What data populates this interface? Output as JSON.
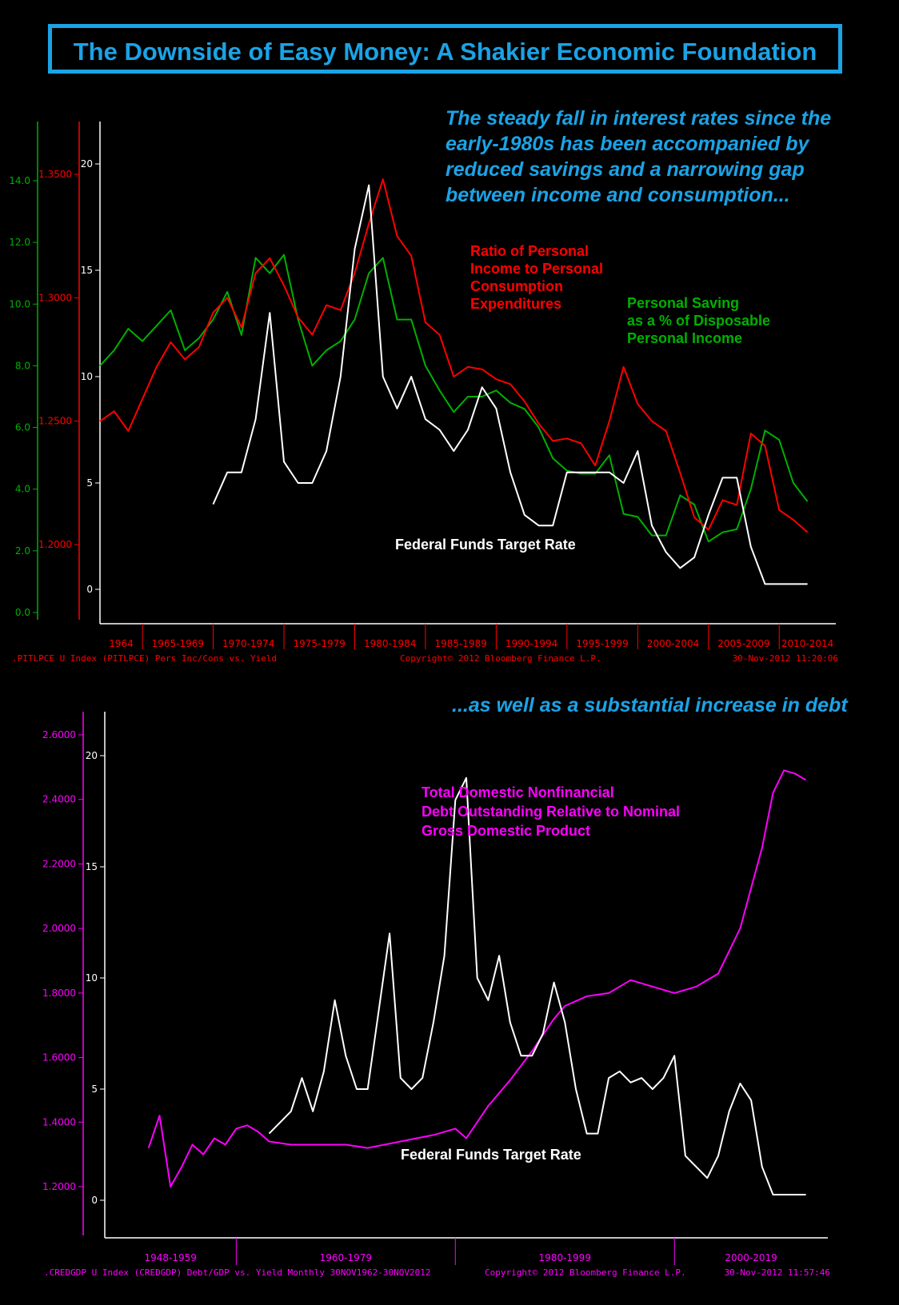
{
  "title": "The Downside of Easy Money: A Shakier Economic Foundation",
  "top_annotation": "The steady fall in interest rates since the early-1980s has been accompanied by reduced savings and a narrowing gap between income and consumption...",
  "bottom_annotation": "...as well as a substantial increase in debt",
  "colors": {
    "title": "#1ba3e6",
    "ratio": "#ff0000",
    "saving": "#00b000",
    "fedfunds": "#ffffff",
    "debt": "#ff00ff"
  },
  "chart_data": [
    {
      "type": "line",
      "series_labels": {
        "ratio": [
          "Ratio of Personal",
          "Income to Personal",
          "Consumption",
          "Expenditures"
        ],
        "saving": [
          "Personal Saving",
          "as a % of Disposable",
          "Personal Income"
        ],
        "fedfunds": [
          "Federal Funds Target Rate"
        ]
      },
      "x_ticks": [
        "1964",
        "1965-1969",
        "1970-1974",
        "1975-1979",
        "1980-1984",
        "1985-1989",
        "1990-1994",
        "1995-1999",
        "2000-2004",
        "2005-2009",
        "2010-2014"
      ],
      "x_range": [
        1962.0,
        2014.0
      ],
      "y_left_green": {
        "ticks": [
          "0.0",
          "2.0",
          "4.0",
          "6.0",
          "8.0",
          "10.0",
          "12.0",
          "14.0"
        ],
        "range": [
          0,
          14
        ]
      },
      "y_left_red": {
        "ticks": [
          "1.2000",
          "1.2500",
          "1.3000",
          "1.3500"
        ],
        "range": [
          1.2,
          1.35
        ]
      },
      "y_right_white": {
        "ticks": [
          "0",
          "5",
          "10",
          "15",
          "20"
        ],
        "range": [
          0,
          20
        ]
      },
      "series": [
        {
          "key": "ratio",
          "axis": "red",
          "points": [
            [
              1962,
              1.25
            ],
            [
              1963,
              1.254
            ],
            [
              1964,
              1.246
            ],
            [
              1965,
              1.259
            ],
            [
              1966,
              1.272
            ],
            [
              1967,
              1.282
            ],
            [
              1968,
              1.275
            ],
            [
              1969,
              1.28
            ],
            [
              1970,
              1.294
            ],
            [
              1971,
              1.3
            ],
            [
              1972,
              1.288
            ],
            [
              1973,
              1.31
            ],
            [
              1974,
              1.316
            ],
            [
              1975,
              1.305
            ],
            [
              1976,
              1.292
            ],
            [
              1977,
              1.285
            ],
            [
              1978,
              1.297
            ],
            [
              1979,
              1.295
            ],
            [
              1980,
              1.31
            ],
            [
              1981,
              1.33
            ],
            [
              1982,
              1.348
            ],
            [
              1983,
              1.325
            ],
            [
              1984,
              1.317
            ],
            [
              1985,
              1.29
            ],
            [
              1986,
              1.285
            ],
            [
              1987,
              1.268
            ],
            [
              1988,
              1.272
            ],
            [
              1989,
              1.271
            ],
            [
              1990,
              1.267
            ],
            [
              1991,
              1.265
            ],
            [
              1992,
              1.258
            ],
            [
              1993,
              1.249
            ],
            [
              1994,
              1.242
            ],
            [
              1995,
              1.243
            ],
            [
              1996,
              1.241
            ],
            [
              1997,
              1.232
            ],
            [
              1998,
              1.25
            ],
            [
              1999,
              1.272
            ],
            [
              2000,
              1.257
            ],
            [
              2001,
              1.25
            ],
            [
              2002,
              1.246
            ],
            [
              2003,
              1.229
            ],
            [
              2004,
              1.211
            ],
            [
              2005,
              1.206
            ],
            [
              2006,
              1.218
            ],
            [
              2007,
              1.216
            ],
            [
              2008,
              1.245
            ],
            [
              2009,
              1.24
            ],
            [
              2010,
              1.214
            ],
            [
              2011,
              1.21
            ],
            [
              2012,
              1.205
            ]
          ]
        },
        {
          "key": "saving",
          "axis": "green",
          "points": [
            [
              1962,
              8.0
            ],
            [
              1963,
              8.5
            ],
            [
              1964,
              9.2
            ],
            [
              1965,
              8.8
            ],
            [
              1966,
              9.3
            ],
            [
              1967,
              9.8
            ],
            [
              1968,
              8.5
            ],
            [
              1969,
              8.9
            ],
            [
              1970,
              9.5
            ],
            [
              1971,
              10.4
            ],
            [
              1972,
              9.0
            ],
            [
              1973,
              11.5
            ],
            [
              1974,
              11.0
            ],
            [
              1975,
              11.6
            ],
            [
              1976,
              9.5
            ],
            [
              1977,
              8.0
            ],
            [
              1978,
              8.5
            ],
            [
              1979,
              8.8
            ],
            [
              1980,
              9.5
            ],
            [
              1981,
              11.0
            ],
            [
              1982,
              11.5
            ],
            [
              1983,
              9.5
            ],
            [
              1984,
              9.5
            ],
            [
              1985,
              8.0
            ],
            [
              1986,
              7.2
            ],
            [
              1987,
              6.5
            ],
            [
              1988,
              7.0
            ],
            [
              1989,
              7.0
            ],
            [
              1990,
              7.2
            ],
            [
              1991,
              6.8
            ],
            [
              1992,
              6.6
            ],
            [
              1993,
              6.0
            ],
            [
              1994,
              5.0
            ],
            [
              1995,
              4.6
            ],
            [
              1996,
              4.5
            ],
            [
              1997,
              4.5
            ],
            [
              1998,
              5.1
            ],
            [
              1999,
              3.2
            ],
            [
              2000,
              3.1
            ],
            [
              2001,
              2.5
            ],
            [
              2002,
              2.5
            ],
            [
              2003,
              3.8
            ],
            [
              2004,
              3.5
            ],
            [
              2005,
              2.3
            ],
            [
              2006,
              2.6
            ],
            [
              2007,
              2.7
            ],
            [
              2008,
              4.0
            ],
            [
              2009,
              5.9
            ],
            [
              2010,
              5.6
            ],
            [
              2011,
              4.2
            ],
            [
              2012,
              3.6
            ]
          ]
        },
        {
          "key": "fedfunds",
          "axis": "white",
          "points": [
            [
              1970,
              4.0
            ],
            [
              1971,
              5.5
            ],
            [
              1972,
              5.5
            ],
            [
              1973,
              8.0
            ],
            [
              1974,
              13.0
            ],
            [
              1975,
              6.0
            ],
            [
              1976,
              5.0
            ],
            [
              1977,
              5.0
            ],
            [
              1978,
              6.5
            ],
            [
              1979,
              10.0
            ],
            [
              1980,
              16.0
            ],
            [
              1981,
              19.0
            ],
            [
              1982,
              10.0
            ],
            [
              1983,
              8.5
            ],
            [
              1984,
              10.0
            ],
            [
              1985,
              8.0
            ],
            [
              1986,
              7.5
            ],
            [
              1987,
              6.5
            ],
            [
              1988,
              7.5
            ],
            [
              1989,
              9.5
            ],
            [
              1990,
              8.5
            ],
            [
              1991,
              5.5
            ],
            [
              1992,
              3.5
            ],
            [
              1993,
              3.0
            ],
            [
              1994,
              3.0
            ],
            [
              1995,
              5.5
            ],
            [
              1996,
              5.5
            ],
            [
              1997,
              5.5
            ],
            [
              1998,
              5.5
            ],
            [
              1999,
              5.0
            ],
            [
              2000,
              6.5
            ],
            [
              2001,
              3.0
            ],
            [
              2002,
              1.75
            ],
            [
              2003,
              1.0
            ],
            [
              2004,
              1.5
            ],
            [
              2005,
              3.5
            ],
            [
              2006,
              5.25
            ],
            [
              2007,
              5.25
            ],
            [
              2008,
              2.0
            ],
            [
              2009,
              0.25
            ],
            [
              2010,
              0.25
            ],
            [
              2011,
              0.25
            ],
            [
              2012,
              0.25
            ]
          ]
        }
      ],
      "footer_left": ".PITLPCE U Index (PITLPCE) Pers Inc/Cons vs. Yield",
      "footer_mid": "Copyright© 2012 Bloomberg Finance L.P.",
      "footer_right": "30-Nov-2012 11:20:06"
    },
    {
      "type": "line",
      "series_labels": {
        "debt": [
          "Total Domestic Nonfinancial",
          "Debt Outstanding Relative to Nominal",
          "Gross Domestic Product"
        ],
        "fedfunds": [
          "Federal Funds Target Rate"
        ]
      },
      "x_ticks": [
        "1948-1959",
        "1960-1979",
        "1980-1999",
        "2000-2019"
      ],
      "x_range": [
        1948.0,
        2014.0
      ],
      "y_left": {
        "ticks": [
          "1.2000",
          "1.4000",
          "1.6000",
          "1.8000",
          "2.0000",
          "2.2000",
          "2.4000",
          "2.6000"
        ],
        "range": [
          1.2,
          2.6
        ]
      },
      "y_right": {
        "ticks": [
          "0",
          "5",
          "10",
          "15",
          "20"
        ],
        "range": [
          0,
          20
        ]
      },
      "series": [
        {
          "key": "debt",
          "axis": "left",
          "points": [
            [
              1952,
              1.32
            ],
            [
              1953,
              1.42
            ],
            [
              1954,
              1.2
            ],
            [
              1955,
              1.26
            ],
            [
              1956,
              1.33
            ],
            [
              1957,
              1.3
            ],
            [
              1958,
              1.35
            ],
            [
              1959,
              1.33
            ],
            [
              1960,
              1.38
            ],
            [
              1961,
              1.39
            ],
            [
              1962,
              1.37
            ],
            [
              1963,
              1.34
            ],
            [
              1965,
              1.33
            ],
            [
              1970,
              1.33
            ],
            [
              1972,
              1.32
            ],
            [
              1975,
              1.34
            ],
            [
              1978,
              1.36
            ],
            [
              1980,
              1.38
            ],
            [
              1981,
              1.35
            ],
            [
              1983,
              1.45
            ],
            [
              1985,
              1.53
            ],
            [
              1987,
              1.62
            ],
            [
              1989,
              1.72
            ],
            [
              1990,
              1.76
            ],
            [
              1992,
              1.79
            ],
            [
              1994,
              1.8
            ],
            [
              1996,
              1.84
            ],
            [
              1998,
              1.82
            ],
            [
              2000,
              1.8
            ],
            [
              2002,
              1.82
            ],
            [
              2004,
              1.86
            ],
            [
              2006,
              2.0
            ],
            [
              2008,
              2.25
            ],
            [
              2009,
              2.42
            ],
            [
              2010,
              2.49
            ],
            [
              2011,
              2.48
            ],
            [
              2012,
              2.46
            ]
          ]
        },
        {
          "key": "fedfunds",
          "axis": "right",
          "points": [
            [
              1963,
              3.0
            ],
            [
              1964,
              3.5
            ],
            [
              1965,
              4.0
            ],
            [
              1966,
              5.5
            ],
            [
              1967,
              4.0
            ],
            [
              1968,
              5.8
            ],
            [
              1969,
              9.0
            ],
            [
              1970,
              6.5
            ],
            [
              1971,
              5.0
            ],
            [
              1972,
              5.0
            ],
            [
              1973,
              8.5
            ],
            [
              1974,
              12.0
            ],
            [
              1975,
              5.5
            ],
            [
              1976,
              5.0
            ],
            [
              1977,
              5.5
            ],
            [
              1978,
              8.0
            ],
            [
              1979,
              11.0
            ],
            [
              1980,
              18.0
            ],
            [
              1981,
              19.0
            ],
            [
              1982,
              10.0
            ],
            [
              1983,
              9.0
            ],
            [
              1984,
              11.0
            ],
            [
              1985,
              8.0
            ],
            [
              1986,
              6.5
            ],
            [
              1987,
              6.5
            ],
            [
              1988,
              7.5
            ],
            [
              1989,
              9.8
            ],
            [
              1990,
              8.0
            ],
            [
              1991,
              5.0
            ],
            [
              1992,
              3.0
            ],
            [
              1993,
              3.0
            ],
            [
              1994,
              5.5
            ],
            [
              1995,
              5.8
            ],
            [
              1996,
              5.3
            ],
            [
              1997,
              5.5
            ],
            [
              1998,
              5.0
            ],
            [
              1999,
              5.5
            ],
            [
              2000,
              6.5
            ],
            [
              2001,
              2.0
            ],
            [
              2002,
              1.5
            ],
            [
              2003,
              1.0
            ],
            [
              2004,
              2.0
            ],
            [
              2005,
              4.0
            ],
            [
              2006,
              5.25
            ],
            [
              2007,
              4.5
            ],
            [
              2008,
              1.5
            ],
            [
              2009,
              0.25
            ],
            [
              2010,
              0.25
            ],
            [
              2011,
              0.25
            ],
            [
              2012,
              0.25
            ]
          ]
        }
      ],
      "footer_left": ".CREDGDP U Index (CREDGDP) Debt/GDP vs. Yield  Monthly 30NOV1962-30NOV2012",
      "footer_mid": "Copyright© 2012 Bloomberg Finance L.P.",
      "footer_right": "30-Nov-2012 11:57:46"
    }
  ]
}
